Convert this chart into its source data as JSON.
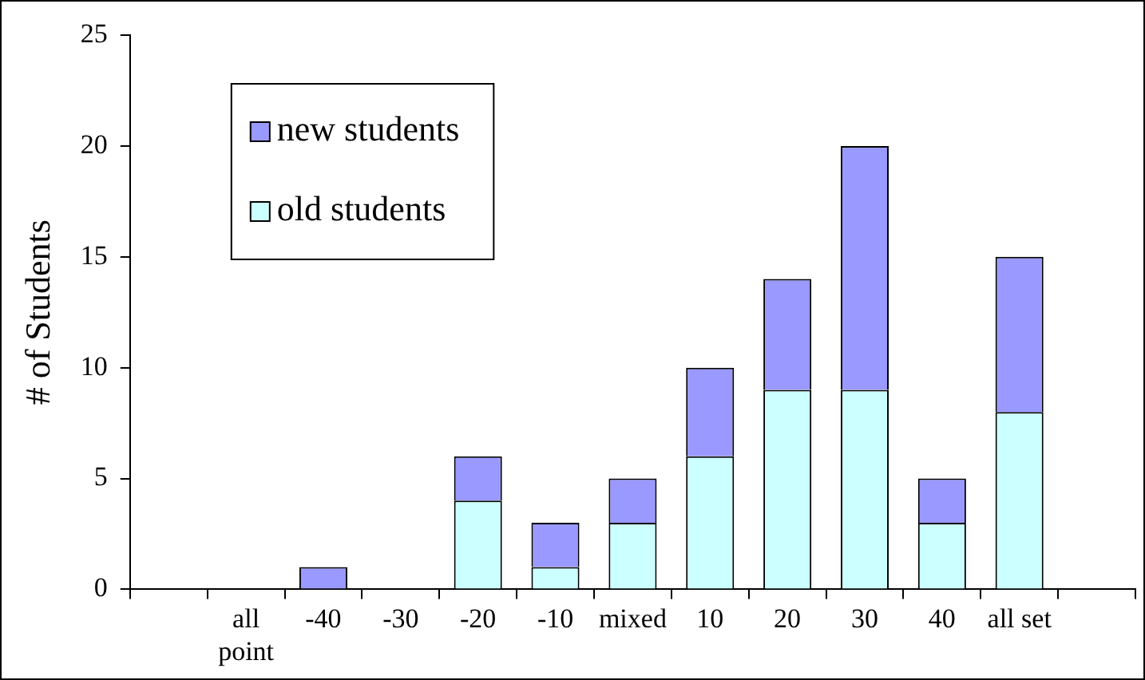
{
  "chart_data": {
    "type": "bar",
    "stacked": true,
    "ylabel": "# of Students",
    "categories": [
      null,
      "all point",
      "-40",
      "-30",
      "-20",
      "-10",
      "mixed",
      "10",
      "20",
      "30",
      "40",
      "all set",
      null
    ],
    "series": [
      {
        "name": "old students",
        "color": "#ccffff",
        "values": [
          null,
          0,
          0,
          0,
          4,
          1,
          3,
          6,
          9,
          9,
          3,
          8,
          null
        ]
      },
      {
        "name": "new students",
        "color": "#9999ff",
        "values": [
          null,
          0,
          1,
          0,
          2,
          2,
          2,
          4,
          5,
          11,
          2,
          7,
          null
        ]
      }
    ],
    "ylim": [
      0,
      25
    ],
    "yticks": [
      0,
      5,
      10,
      15,
      20,
      25
    ],
    "grid": false,
    "legend": "top left"
  }
}
